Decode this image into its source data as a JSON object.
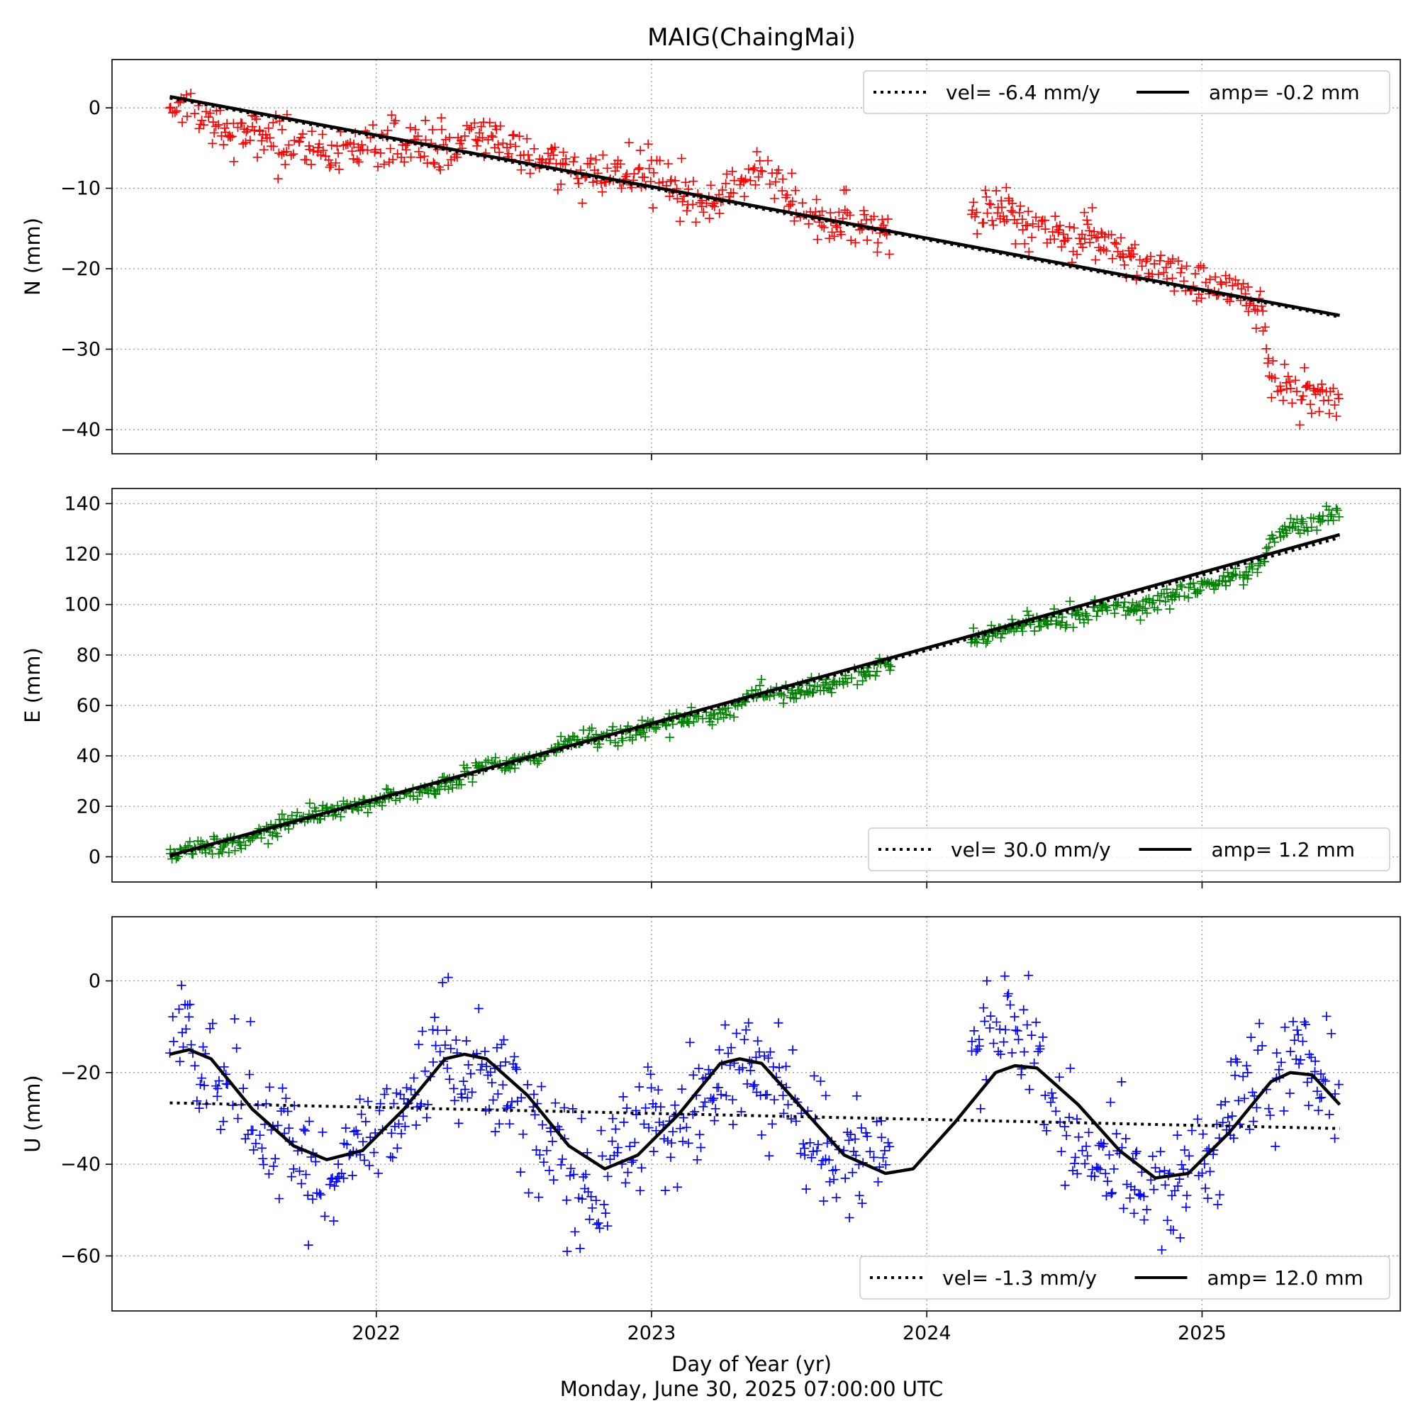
{
  "figure": {
    "title": "MAIG(ChaingMai)",
    "xlabel": "Day of Year (yr)",
    "footer": "Monday, June 30, 2025 07:00:00 UTC"
  },
  "chart_data": [
    {
      "type": "scatter",
      "component": "N",
      "ylabel": "N (mm)",
      "xlim": [
        2021.04,
        2025.72
      ],
      "ylim": [
        -43,
        6
      ],
      "yticks": [
        0,
        -10,
        -20,
        -30,
        -40
      ],
      "xticks": [
        2022,
        2023,
        2024,
        2025
      ],
      "grid": true,
      "marker": "+",
      "color": "#ff0000",
      "legend_position": "top-right",
      "legend": [
        {
          "style": "dotted",
          "label": "vel= -6.4 mm/y"
        },
        {
          "style": "solid",
          "label": "amp= -0.2 mm"
        }
      ],
      "observations_sampled": {
        "x": [
          2021.25,
          2021.35,
          2021.45,
          2021.55,
          2021.65,
          2021.75,
          2021.85,
          2021.95,
          2022.05,
          2022.15,
          2022.25,
          2022.35,
          2022.45,
          2022.55,
          2022.65,
          2022.75,
          2022.85,
          2022.95,
          2023.05,
          2023.15,
          2023.25,
          2023.35,
          2023.45,
          2023.55,
          2023.65,
          2023.75,
          2023.85,
          2024.17,
          2024.25,
          2024.35,
          2024.45,
          2024.55,
          2024.65,
          2024.75,
          2024.85,
          2024.95,
          2025.05,
          2025.15,
          2025.22,
          2025.25,
          2025.35,
          2025.45,
          2025.5
        ],
        "y": [
          0,
          -0.5,
          -2.5,
          -3,
          -4,
          -5,
          -5.5,
          -5,
          -4,
          -4.5,
          -4.5,
          -4,
          -4,
          -6,
          -7,
          -8,
          -8.5,
          -8,
          -9,
          -11,
          -11.5,
          -8,
          -9,
          -12.5,
          -14,
          -14,
          -15.5,
          -13,
          -12.5,
          -13.5,
          -15,
          -16,
          -17,
          -18.5,
          -20,
          -21.5,
          -22,
          -23,
          -25,
          -34,
          -35,
          -36.5,
          -37
        ]
      },
      "trend_line": {
        "x": [
          2021.25,
          2025.5
        ],
        "y": [
          1.2,
          -26
        ]
      },
      "seasonal_fit": {
        "x": [
          2021.25,
          2025.5
        ],
        "y": [
          1.4,
          -25.8
        ]
      }
    },
    {
      "type": "scatter",
      "component": "E",
      "ylabel": "E (mm)",
      "xlim": [
        2021.04,
        2025.72
      ],
      "ylim": [
        -10,
        146
      ],
      "yticks": [
        0,
        20,
        40,
        60,
        80,
        100,
        120,
        140
      ],
      "xticks": [
        2022,
        2023,
        2024,
        2025
      ],
      "grid": true,
      "marker": "+",
      "color": "#008000",
      "legend_position": "bottom-right",
      "legend": [
        {
          "style": "dotted",
          "label": "vel= 30.0 mm/y"
        },
        {
          "style": "solid",
          "label": "amp= 1.2 mm"
        }
      ],
      "observations_sampled": {
        "x": [
          2021.25,
          2021.35,
          2021.5,
          2021.6,
          2021.7,
          2021.8,
          2021.9,
          2022.0,
          2022.1,
          2022.2,
          2022.3,
          2022.4,
          2022.5,
          2022.6,
          2022.7,
          2022.8,
          2022.9,
          2023.0,
          2023.1,
          2023.2,
          2023.3,
          2023.4,
          2023.5,
          2023.6,
          2023.7,
          2023.8,
          2023.85,
          2024.17,
          2024.25,
          2024.35,
          2024.45,
          2024.55,
          2024.65,
          2024.75,
          2024.85,
          2024.95,
          2025.05,
          2025.15,
          2025.22,
          2025.25,
          2025.35,
          2025.45,
          2025.5
        ],
        "y": [
          0,
          4,
          6,
          10,
          14,
          18,
          19,
          22,
          25,
          27,
          31,
          36,
          37,
          40,
          46,
          47,
          48,
          52,
          54,
          56,
          60,
          65,
          65,
          67,
          70,
          74,
          75,
          86,
          89,
          92,
          93,
          95,
          99,
          98,
          102,
          106,
          108,
          112,
          116,
          127,
          131,
          134,
          135
        ]
      },
      "trend_line": {
        "x": [
          2021.25,
          2025.5
        ],
        "y": [
          0,
          126.5
        ]
      },
      "seasonal_fit": {
        "x": [
          2021.25,
          2025.5
        ],
        "y": [
          0.5,
          127.7
        ]
      }
    },
    {
      "type": "scatter",
      "component": "U",
      "ylabel": "U (mm)",
      "xlim": [
        2021.04,
        2025.72
      ],
      "ylim": [
        -72,
        14
      ],
      "yticks": [
        0,
        -20,
        -40,
        -60
      ],
      "xticks": [
        2022,
        2023,
        2024,
        2025
      ],
      "grid": true,
      "marker": "+",
      "color": "#0000ff",
      "legend_position": "bottom-right",
      "legend": [
        {
          "style": "dotted",
          "label": "vel= -1.3 mm/y"
        },
        {
          "style": "solid",
          "label": "amp= 12.0 mm"
        }
      ],
      "observations_sampled": {
        "x": [
          2021.25,
          2021.3,
          2021.35,
          2021.45,
          2021.55,
          2021.65,
          2021.75,
          2021.85,
          2021.95,
          2022.05,
          2022.15,
          2022.25,
          2022.3,
          2022.4,
          2022.5,
          2022.6,
          2022.7,
          2022.8,
          2022.9,
          2023.0,
          2023.1,
          2023.2,
          2023.3,
          2023.4,
          2023.5,
          2023.6,
          2023.7,
          2023.8,
          2023.85,
          2024.17,
          2024.25,
          2024.35,
          2024.45,
          2024.55,
          2024.65,
          2024.75,
          2024.85,
          2024.95,
          2025.05,
          2025.15,
          2025.25,
          2025.35,
          2025.45,
          2025.5
        ],
        "y": [
          -12,
          -5,
          -18,
          -20,
          -28,
          -32,
          -40,
          -44,
          -36,
          -32,
          -20,
          -15,
          -20,
          -18,
          -25,
          -32,
          -42,
          -48,
          -38,
          -30,
          -35,
          -22,
          -18,
          -20,
          -28,
          -34,
          -38,
          -42,
          -40,
          -12,
          -10,
          -8,
          -25,
          -35,
          -40,
          -44,
          -48,
          -40,
          -35,
          -22,
          -25,
          -16,
          -20,
          -32
        ]
      },
      "trend_line": {
        "x": [
          2021.25,
          2025.5
        ],
        "y": [
          -26.6,
          -32.2
        ]
      },
      "seasonal_fit": {
        "x": [
          2021.25,
          2021.32,
          2021.4,
          2021.55,
          2021.7,
          2021.82,
          2021.95,
          2022.1,
          2022.25,
          2022.32,
          2022.4,
          2022.55,
          2022.7,
          2022.83,
          2022.95,
          2023.1,
          2023.25,
          2023.32,
          2023.4,
          2023.55,
          2023.7,
          2023.85,
          2023.95,
          2024.1,
          2024.25,
          2024.32,
          2024.4,
          2024.55,
          2024.7,
          2024.83,
          2024.95,
          2025.1,
          2025.25,
          2025.32,
          2025.4,
          2025.5
        ],
        "y": [
          -16,
          -15,
          -17,
          -28,
          -36,
          -39,
          -37,
          -28,
          -17,
          -16,
          -17,
          -25,
          -36,
          -41,
          -38,
          -29,
          -18,
          -17,
          -18,
          -28,
          -38,
          -42,
          -41,
          -31,
          -20,
          -18.5,
          -19,
          -27,
          -37,
          -43,
          -42,
          -33,
          -22,
          -20,
          -20.5,
          -27
        ]
      }
    }
  ]
}
